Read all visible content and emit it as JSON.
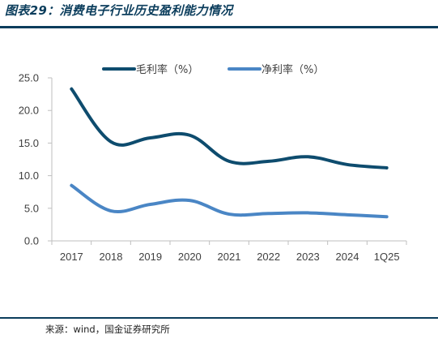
{
  "figure": {
    "title": "图表29：消费电子行业历史盈利能力情况",
    "source": "来源：wind，国金证券研究所"
  },
  "colors": {
    "gross_margin": "#0e4c6e",
    "net_margin": "#4a86c5",
    "accent": "#0b3d5c"
  },
  "chart_data": {
    "type": "line",
    "categories": [
      "2017",
      "2018",
      "2019",
      "2020",
      "2021",
      "2022",
      "2023",
      "2024",
      "1Q25"
    ],
    "series": [
      {
        "name": "毛利率（%）",
        "values": [
          23.3,
          15.2,
          15.8,
          16.2,
          12.2,
          12.2,
          12.9,
          11.7,
          11.2
        ]
      },
      {
        "name": "净利率（%）",
        "values": [
          8.5,
          4.6,
          5.6,
          6.2,
          4.1,
          4.2,
          4.3,
          4.0,
          3.7
        ]
      }
    ],
    "ylim": [
      0,
      25
    ],
    "yticks": [
      "0.0",
      "5.0",
      "10.0",
      "15.0",
      "20.0",
      "25.0"
    ],
    "legend_position": "top",
    "grid": false,
    "smooth": true
  }
}
